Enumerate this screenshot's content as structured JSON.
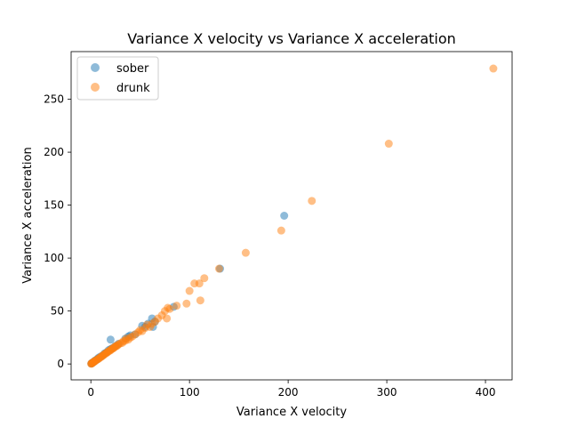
{
  "chart_data": {
    "type": "scatter",
    "title": "Variance X velocity vs Variance X acceleration",
    "xlabel": "Variance X velocity",
    "ylabel": "Variance X acceleration",
    "xlim": [
      -20,
      427
    ],
    "ylim": [
      -15,
      295
    ],
    "xticks": [
      0,
      100,
      200,
      300,
      400
    ],
    "yticks": [
      0,
      50,
      100,
      150,
      200,
      250
    ],
    "grid": false,
    "legend": "top-left",
    "series": [
      {
        "name": "sober",
        "color": "#1f77b4",
        "points": [
          [
            0.5,
            0.4
          ],
          [
            1,
            0.8
          ],
          [
            1.5,
            1
          ],
          [
            2,
            1.5
          ],
          [
            3,
            2
          ],
          [
            4,
            3
          ],
          [
            5,
            3.5
          ],
          [
            6,
            4
          ],
          [
            7,
            5
          ],
          [
            8,
            6
          ],
          [
            10,
            7
          ],
          [
            12,
            8
          ],
          [
            14,
            10
          ],
          [
            16,
            11
          ],
          [
            18,
            13
          ],
          [
            20,
            14
          ],
          [
            22,
            15
          ],
          [
            25,
            17
          ],
          [
            28,
            19
          ],
          [
            20,
            23
          ],
          [
            35,
            24
          ],
          [
            38,
            26
          ],
          [
            40,
            27
          ],
          [
            45,
            28
          ],
          [
            52,
            36
          ],
          [
            55,
            35
          ],
          [
            58,
            38
          ],
          [
            62,
            43
          ],
          [
            65,
            40
          ],
          [
            63,
            35
          ],
          [
            84,
            54
          ],
          [
            131,
            90
          ],
          [
            196,
            140
          ]
        ]
      },
      {
        "name": "drunk",
        "color": "#ff7f0e",
        "points": [
          [
            0.3,
            0.2
          ],
          [
            0.6,
            0.4
          ],
          [
            1,
            0.6
          ],
          [
            1.5,
            1
          ],
          [
            2,
            1.3
          ],
          [
            2.5,
            1.7
          ],
          [
            3,
            2
          ],
          [
            3.5,
            2.3
          ],
          [
            4,
            2.7
          ],
          [
            5,
            3.2
          ],
          [
            6,
            4
          ],
          [
            7,
            4.5
          ],
          [
            8,
            5
          ],
          [
            9,
            5.8
          ],
          [
            10,
            6.5
          ],
          [
            11,
            7
          ],
          [
            12,
            8
          ],
          [
            13,
            8.5
          ],
          [
            14,
            9.3
          ],
          [
            15,
            10
          ],
          [
            16,
            10.5
          ],
          [
            17,
            11.2
          ],
          [
            18,
            12
          ],
          [
            19,
            12.5
          ],
          [
            20,
            13
          ],
          [
            21,
            14
          ],
          [
            22,
            14.5
          ],
          [
            23,
            15
          ],
          [
            24,
            15.8
          ],
          [
            25,
            16.5
          ],
          [
            26,
            17
          ],
          [
            27,
            17.5
          ],
          [
            28,
            18.5
          ],
          [
            30,
            19.5
          ],
          [
            32,
            20
          ],
          [
            33,
            21.5
          ],
          [
            35,
            22
          ],
          [
            36,
            24
          ],
          [
            38,
            23
          ],
          [
            40,
            25
          ],
          [
            42,
            26
          ],
          [
            45,
            28
          ],
          [
            48,
            30
          ],
          [
            50,
            32
          ],
          [
            52,
            31
          ],
          [
            55,
            34
          ],
          [
            57,
            37
          ],
          [
            60,
            35
          ],
          [
            62,
            38
          ],
          [
            65,
            40
          ],
          [
            68,
            43
          ],
          [
            72,
            46
          ],
          [
            75,
            50
          ],
          [
            77,
            43
          ],
          [
            78,
            53
          ],
          [
            80,
            52
          ],
          [
            87,
            55
          ],
          [
            97,
            57
          ],
          [
            100,
            69
          ],
          [
            105,
            76
          ],
          [
            110,
            76
          ],
          [
            111,
            60
          ],
          [
            115,
            81
          ],
          [
            130,
            90
          ],
          [
            157,
            105
          ],
          [
            193,
            126
          ],
          [
            224,
            154
          ],
          [
            302,
            208
          ],
          [
            408,
            279
          ]
        ]
      }
    ]
  }
}
